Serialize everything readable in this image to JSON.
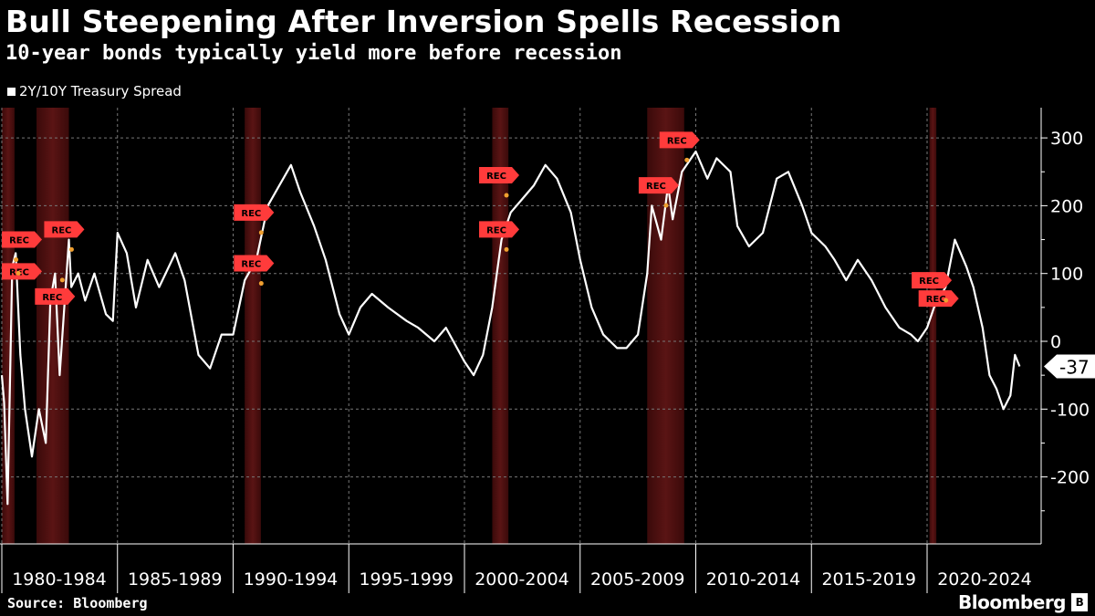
{
  "chart_data": {
    "type": "line",
    "title": "Bull Steepening After Inversion Spells Recession",
    "subtitle": "10-year bonds typically yield more before recession",
    "legend": [
      "2Y/10Y Treasury Spread"
    ],
    "legend_placement": "top-left",
    "source": "Source: Bloomberg",
    "brand": "Bloomberg",
    "ylim": [
      -300,
      340
    ],
    "yticks": [
      300,
      200,
      100,
      0,
      -100,
      -200
    ],
    "ytick_labels": [
      "300",
      "200",
      "100",
      "0",
      "-100",
      "-200"
    ],
    "y_axis_side": "right",
    "grid": true,
    "xlim": [
      1980,
      2024.8
    ],
    "x_periods": [
      "1980-1984",
      "1985-1989",
      "1990-1994",
      "1995-1999",
      "2000-2004",
      "2005-2009",
      "2010-2014",
      "2015-2019",
      "2020-2024"
    ],
    "last_value_label": "-37",
    "colors": {
      "line": "#ffffff",
      "recession": "#5a1414",
      "rec_marker": "#ff3b3b",
      "dot": "#f0a030"
    },
    "recessions": [
      [
        1980.0,
        1980.55
      ],
      [
        1981.5,
        1982.9
      ],
      [
        1990.5,
        1991.2
      ],
      [
        2001.2,
        2001.9
      ],
      [
        2007.9,
        2009.5
      ],
      [
        2020.1,
        2020.4
      ]
    ],
    "rec_markers": [
      {
        "date": 1980.3,
        "value": 150,
        "label": "REC"
      },
      {
        "date": 1980.4,
        "value": 130,
        "label": "REC"
      },
      {
        "date": 1982.3,
        "value": 120,
        "label": "REC"
      },
      {
        "date": 1982.7,
        "value": 165,
        "label": "REC"
      },
      {
        "date": 1990.9,
        "value": 190,
        "label": "REC"
      },
      {
        "date": 1990.9,
        "value": 115,
        "label": "REC"
      },
      {
        "date": 2001.5,
        "value": 245,
        "label": "REC"
      },
      {
        "date": 2001.5,
        "value": 165,
        "label": "REC"
      },
      {
        "date": 2008.4,
        "value": 230,
        "label": "REC"
      },
      {
        "date": 2009.3,
        "value": 297,
        "label": "REC"
      },
      {
        "date": 2020.2,
        "value": 90,
        "label": "REC"
      },
      {
        "date": 2020.5,
        "value": 90,
        "label": "REC"
      }
    ],
    "series": [
      {
        "name": "2Y/10Y Treasury Spread",
        "x": [
          1980.0,
          1980.1,
          1980.25,
          1980.45,
          1980.6,
          1980.8,
          1981.0,
          1981.3,
          1981.6,
          1981.9,
          1982.1,
          1982.3,
          1982.5,
          1982.9,
          1983.0,
          1983.3,
          1983.6,
          1984.0,
          1984.5,
          1984.8,
          1985.0,
          1985.4,
          1985.8,
          1986.3,
          1986.8,
          1987.5,
          1987.9,
          1988.5,
          1989.0,
          1989.5,
          1990.0,
          1990.5,
          1991.0,
          1991.5,
          1992.0,
          1992.5,
          1992.9,
          1993.5,
          1994.0,
          1994.6,
          1995.0,
          1995.5,
          1996.0,
          1996.7,
          1997.5,
          1998.0,
          1998.7,
          1999.2,
          2000.0,
          2000.4,
          2000.8,
          2001.2,
          2001.6,
          2002.0,
          2002.5,
          2003.0,
          2003.5,
          2004.0,
          2004.6,
          2005.0,
          2005.5,
          2006.0,
          2006.6,
          2007.0,
          2007.5,
          2007.9,
          2008.1,
          2008.5,
          2008.8,
          2009.0,
          2009.4,
          2010.0,
          2010.5,
          2010.9,
          2011.5,
          2011.8,
          2012.3,
          2012.9,
          2013.5,
          2014.0,
          2014.6,
          2015.0,
          2015.6,
          2016.0,
          2016.5,
          2017.0,
          2017.6,
          2018.2,
          2018.8,
          2019.3,
          2019.6,
          2020.0,
          2020.3,
          2020.8,
          2021.2,
          2021.7,
          2022.0,
          2022.4,
          2022.7,
          2023.0,
          2023.3,
          2023.6,
          2023.8,
          2024.0
        ],
        "values": [
          -50,
          -90,
          -240,
          110,
          130,
          -20,
          -100,
          -170,
          -100,
          -150,
          60,
          100,
          -50,
          150,
          80,
          100,
          60,
          100,
          40,
          30,
          160,
          130,
          50,
          120,
          80,
          130,
          90,
          -20,
          -40,
          10,
          10,
          90,
          120,
          200,
          230,
          260,
          220,
          170,
          120,
          40,
          10,
          50,
          70,
          50,
          30,
          20,
          0,
          20,
          -30,
          -50,
          -20,
          50,
          150,
          190,
          210,
          230,
          260,
          240,
          190,
          120,
          50,
          10,
          -10,
          -10,
          10,
          100,
          200,
          150,
          230,
          180,
          250,
          280,
          240,
          270,
          250,
          170,
          140,
          160,
          240,
          250,
          200,
          160,
          140,
          120,
          90,
          120,
          90,
          50,
          20,
          10,
          0,
          20,
          50,
          80,
          150,
          110,
          80,
          20,
          -50,
          -70,
          -100,
          -80,
          -20,
          -37
        ]
      }
    ]
  }
}
